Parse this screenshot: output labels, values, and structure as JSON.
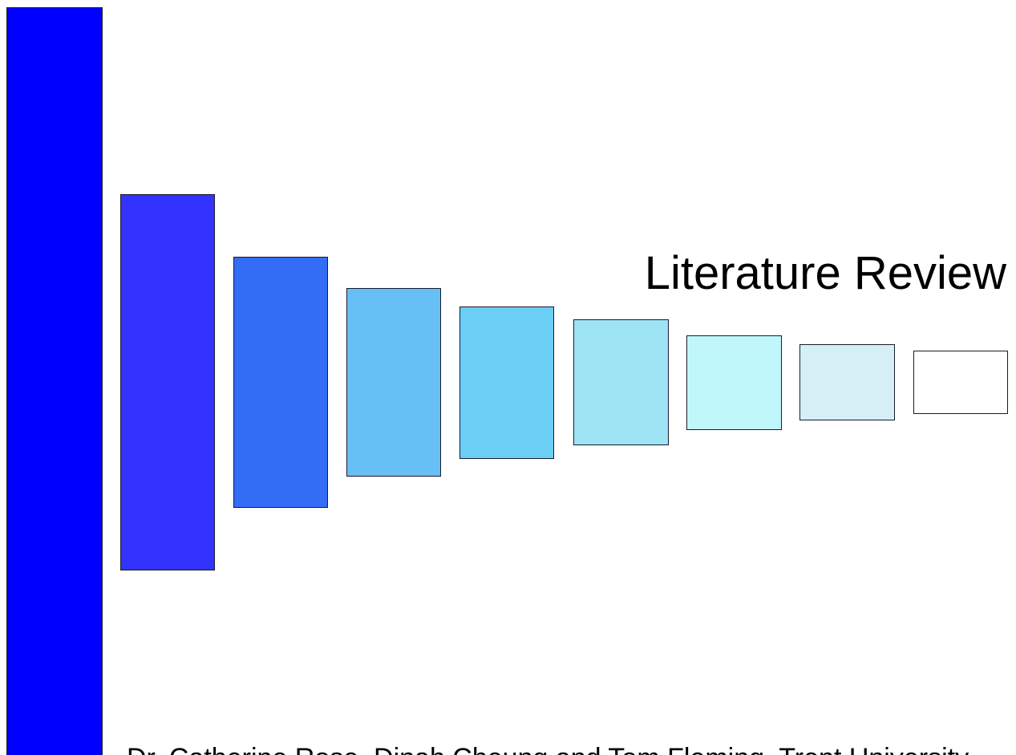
{
  "slide": {
    "title": "Literature Review",
    "footer": "Dr. Catherine Rose, Dinah Cheung and Tom Fleming, Trent University"
  },
  "decor": {
    "colors": [
      "#0000ff",
      "#3333ff",
      "#336cf5",
      "#66bff5",
      "#6bcff5",
      "#9fe4f4",
      "#c0f7fb",
      "#d5f0f5",
      "#ffffff"
    ]
  }
}
